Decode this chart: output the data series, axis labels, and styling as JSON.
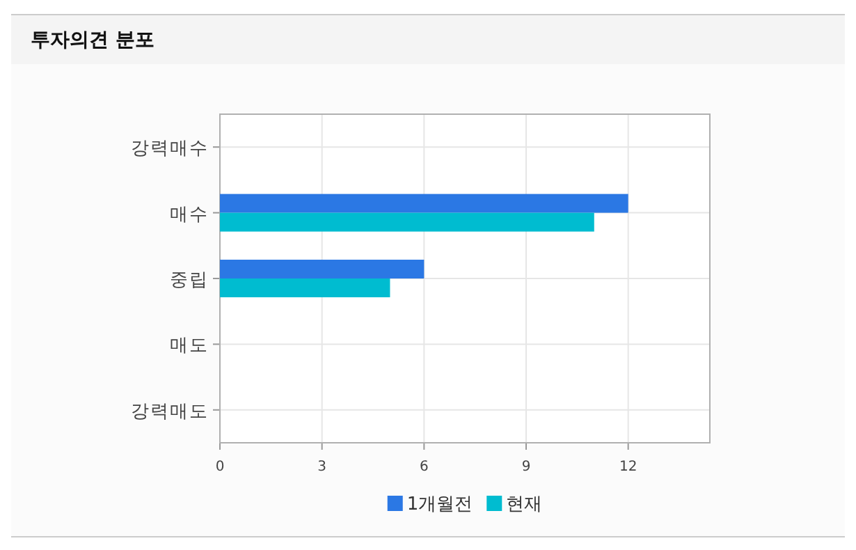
{
  "chart_data": {
    "type": "bar",
    "orientation": "horizontal",
    "title": "투자의견 분포",
    "categories": [
      "강력매수",
      "매수",
      "중립",
      "매도",
      "강력매도"
    ],
    "series": [
      {
        "name": "1개월전",
        "color": "#2b78e4",
        "values": [
          0,
          12,
          6,
          0,
          0
        ]
      },
      {
        "name": "현재",
        "color": "#00bcd0",
        "values": [
          0,
          11,
          5,
          0,
          0
        ]
      }
    ],
    "xlim": [
      0,
      14.4
    ],
    "xticks": [
      0,
      3,
      6,
      9,
      12
    ],
    "grid": true,
    "legend": "bottom"
  }
}
